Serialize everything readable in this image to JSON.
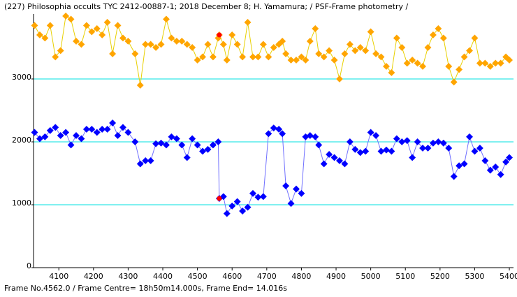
{
  "chart_data": {
    "type": "line",
    "title": "(227) Philosophia occults  TYC 2412-00887-1; 2018 December 8; H. Yamamura; / PSF-Frame photometry /",
    "footer": "Frame No.4562.0 / Frame Centre= 18h50m14.000s,  Frame End= 14.016s",
    "x": [
      4030,
      4045,
      4060,
      4075,
      4090,
      4105,
      4120,
      4135,
      4150,
      4165,
      4180,
      4195,
      4210,
      4225,
      4240,
      4255,
      4270,
      4285,
      4300,
      4320,
      4335,
      4350,
      4365,
      4380,
      4395,
      4410,
      4425,
      4440,
      4455,
      4470,
      4485,
      4500,
      4515,
      4530,
      4545,
      4560,
      4563,
      4575,
      4585,
      4600,
      4615,
      4630,
      4645,
      4660,
      4675,
      4690,
      4705,
      4720,
      4735,
      4745,
      4755,
      4770,
      4785,
      4800,
      4812,
      4825,
      4840,
      4850,
      4865,
      4880,
      4895,
      4910,
      4925,
      4940,
      4955,
      4970,
      4985,
      5000,
      5015,
      5030,
      5045,
      5060,
      5075,
      5090,
      5105,
      5120,
      5135,
      5150,
      5165,
      5180,
      5195,
      5210,
      5225,
      5240,
      5255,
      5270,
      5285,
      5300,
      5315,
      5330,
      5345,
      5360,
      5375,
      5390,
      5400
    ],
    "series": [
      {
        "color": "#ffa500",
        "line_color": "#e8d000",
        "values": [
          3850,
          3700,
          3650,
          3850,
          3350,
          3450,
          4000,
          3950,
          3600,
          3550,
          3850,
          3750,
          3800,
          3700,
          3900,
          3400,
          3850,
          3650,
          3600,
          3400,
          2900,
          3550,
          3550,
          3500,
          3550,
          3950,
          3650,
          3600,
          3600,
          3550,
          3500,
          3300,
          3350,
          3550,
          3350,
          3650,
          3700,
          3550,
          3300,
          3700,
          3550,
          3350,
          3900,
          3350,
          3350,
          3550,
          3350,
          3500,
          3550,
          3600,
          3400,
          3300,
          3300,
          3350,
          3300,
          3600,
          3800,
          3400,
          3350,
          3450,
          3300,
          3000,
          3400,
          3550,
          3450,
          3500,
          3450,
          3750,
          3400,
          3350,
          3200,
          3100,
          3650,
          3500,
          3250,
          3300,
          3250,
          3200,
          3500,
          3700,
          3800,
          3650,
          3200,
          2950,
          3150,
          3350,
          3450,
          3650,
          3250,
          3250,
          3200,
          3250,
          3250,
          3350,
          3300
        ]
      },
      {
        "color": "#0000ff",
        "line_color": "#7070ff",
        "values": [
          2150,
          2050,
          2080,
          2180,
          2230,
          2100,
          2150,
          1950,
          2100,
          2050,
          2200,
          2200,
          2150,
          2200,
          2200,
          2300,
          2100,
          2230,
          2150,
          2000,
          1650,
          1700,
          1700,
          1970,
          1980,
          1950,
          2080,
          2050,
          1950,
          1750,
          2050,
          1950,
          1850,
          1880,
          1950,
          2000,
          1100,
          1130,
          860,
          980,
          1050,
          900,
          960,
          1180,
          1120,
          1130,
          2130,
          2220,
          2200,
          2130,
          1300,
          1020,
          1250,
          1180,
          2080,
          2100,
          2080,
          1950,
          1650,
          1800,
          1750,
          1700,
          1650,
          2000,
          1880,
          1830,
          1850,
          2150,
          2100,
          1850,
          1870,
          1850,
          2050,
          2000,
          2020,
          1750,
          2000,
          1900,
          1900,
          1980,
          2000,
          1980,
          1900,
          1450,
          1620,
          1650,
          2080,
          1850,
          1900,
          1700,
          1550,
          1600,
          1480,
          1680,
          1750
        ]
      }
    ],
    "markers": [
      {
        "x": 4563,
        "y": 3700,
        "color": "#ff0000"
      },
      {
        "x": 4563,
        "y": 1100,
        "color": "#ff0000"
      }
    ],
    "xlim": [
      4027,
      5412
    ],
    "ylim": [
      0,
      4033
    ],
    "xticks": [
      4100,
      4200,
      4300,
      4400,
      4500,
      4600,
      4700,
      4800,
      4900,
      5000,
      5100,
      5200,
      5300,
      5400
    ],
    "yticks": [
      0,
      1000,
      2000,
      3000
    ],
    "grid": true,
    "grid_color": "#00e0e0"
  }
}
